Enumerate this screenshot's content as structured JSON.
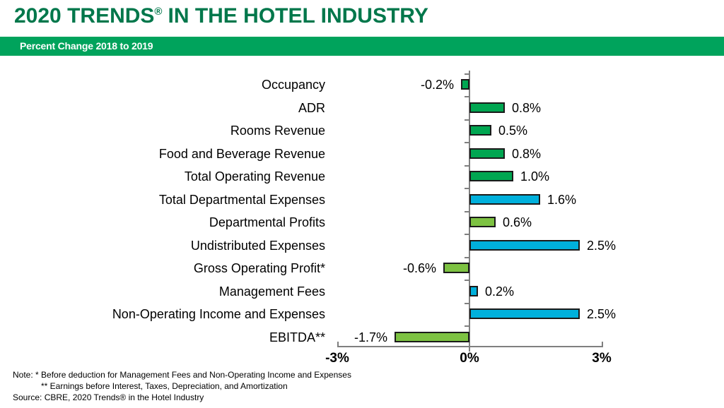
{
  "header": {
    "title_main": "2020 TRENDS",
    "title_reg": "®",
    "title_rest": "IN THE HOTEL INDUSTRY",
    "subtitle": "Percent Change 2018 to 2019"
  },
  "chart_data": {
    "type": "bar",
    "orientation": "horizontal",
    "title": "2020 TRENDS® IN THE HOTEL INDUSTRY",
    "subtitle": "Percent Change 2018 to 2019",
    "categories": [
      "Occupancy",
      "ADR",
      "Rooms Revenue",
      "Food and Beverage Revenue",
      "Total Operating Revenue",
      "Total Departmental Expenses",
      "Departmental Profits",
      "Undistributed Expenses",
      "Gross Operating Profit*",
      "Management Fees",
      "Non-Operating Income and Expenses",
      "EBITDA**"
    ],
    "values": [
      -0.2,
      0.8,
      0.5,
      0.8,
      1.0,
      1.6,
      0.6,
      2.5,
      -0.6,
      0.2,
      2.5,
      -1.7
    ],
    "value_labels": [
      "-0.2%",
      "0.8%",
      "0.5%",
      "0.8%",
      "1.0%",
      "1.6%",
      "0.6%",
      "2.5%",
      "-0.6%",
      "0.2%",
      "2.5%",
      "-1.7%"
    ],
    "bar_colors": [
      "#00A651",
      "#00A651",
      "#00A651",
      "#00A651",
      "#00A651",
      "#00B0DC",
      "#7DC242",
      "#00B0DC",
      "#7DC242",
      "#00B0DC",
      "#00B0DC",
      "#7DC242"
    ],
    "xlim": [
      -3,
      3
    ],
    "x_tick_values": [
      -3,
      0,
      3
    ],
    "x_tick_labels": [
      "-3%",
      "0%",
      "3%"
    ],
    "grid": false,
    "legend": "none"
  },
  "notes": {
    "line1": "Note: * Before deduction for Management Fees and Non-Operating Income and Expenses",
    "line2": "** Earnings before Interest, Taxes, Depreciation, and Amortization",
    "line3": "Source: CBRE, 2020 Trends® in the Hotel Industry"
  },
  "colors": {
    "title_green": "#00774B",
    "band_green": "#00A35C",
    "subtitle_text": "#FFFFFF",
    "axis_gray": "#7F7F7F",
    "bar_border": "#1A1A1A",
    "text": "#000000",
    "bar_green": "#00A651",
    "bar_blue": "#00B0DC",
    "bar_lime": "#7DC242"
  }
}
